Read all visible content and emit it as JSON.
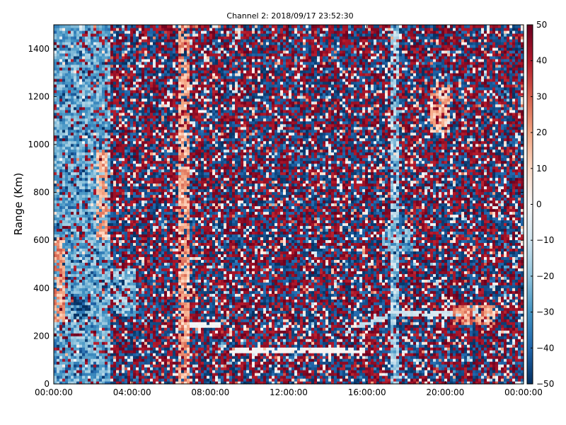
{
  "chart_data": {
    "type": "heatmap",
    "title": "Channel 2: 2018/09/17 23:52:30",
    "ylabel": "Range (Km)",
    "xlabel": "",
    "x_ticks": [
      "00:00:00",
      "04:00:00",
      "08:00:00",
      "12:00:00",
      "16:00:00",
      "20:00:00",
      "00:00:00"
    ],
    "x_range_hours": [
      0,
      24
    ],
    "y_ticks": [
      0,
      200,
      400,
      600,
      800,
      1000,
      1200,
      1400
    ],
    "y_range": [
      0,
      1500
    ],
    "colorbar": {
      "ticks": [
        50,
        40,
        30,
        20,
        10,
        0,
        -10,
        -20,
        -30,
        -40,
        -50
      ],
      "range": [
        -50,
        50
      ],
      "colormap": "RdBu_r"
    },
    "colors": {
      "low": "#053061",
      "mid": "#f7f7f7",
      "high": "#67001f"
    },
    "features": [
      {
        "kind": "cold",
        "t": [
          0.0,
          2.9
        ],
        "r": [
          0,
          1500
        ],
        "value": -25
      },
      {
        "kind": "warm",
        "t": [
          0.0,
          0.6
        ],
        "r": [
          260,
          620
        ],
        "value": 20
      },
      {
        "kind": "warm",
        "t": [
          2.1,
          2.7
        ],
        "r": [
          600,
          980
        ],
        "value": 18
      },
      {
        "kind": "cold",
        "t": [
          1.0,
          1.7
        ],
        "r": [
          280,
          360
        ],
        "value": -45
      },
      {
        "kind": "cold",
        "t": [
          3.0,
          4.2
        ],
        "r": [
          280,
          480
        ],
        "value": -22
      },
      {
        "kind": "warm",
        "t": [
          6.3,
          6.9
        ],
        "r": [
          0,
          1500
        ],
        "value": 20
      },
      {
        "kind": "line",
        "t": [
          7.0,
          8.5
        ],
        "r": [
          250,
          250
        ],
        "value": 0
      },
      {
        "kind": "line",
        "t": [
          8.9,
          15.9
        ],
        "r": [
          140,
          140
        ],
        "value": 0
      },
      {
        "kind": "line",
        "t": [
          15.5,
          17.5
        ],
        "r": [
          240,
          300
        ],
        "value": -12
      },
      {
        "kind": "line",
        "t": [
          17.5,
          22.6
        ],
        "r": [
          300,
          300
        ],
        "value": -10
      },
      {
        "kind": "cold",
        "t": [
          17.2,
          17.7
        ],
        "r": [
          0,
          1500
        ],
        "value": -18
      },
      {
        "kind": "cold",
        "t": [
          16.7,
          18.5
        ],
        "r": [
          550,
          650
        ],
        "value": -25
      },
      {
        "kind": "warm",
        "t": [
          20.4,
          22.5
        ],
        "r": [
          250,
          330
        ],
        "value": 22
      },
      {
        "kind": "warm",
        "t": [
          19.2,
          20.2
        ],
        "r": [
          1050,
          1250
        ],
        "value": 15
      }
    ]
  }
}
